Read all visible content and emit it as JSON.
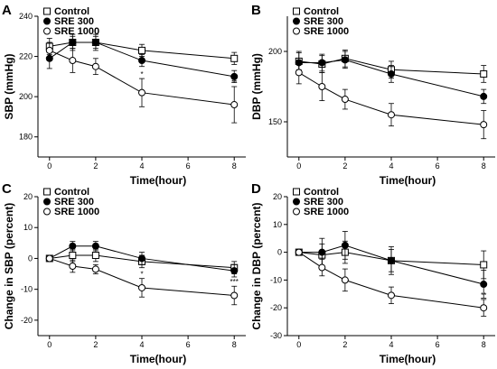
{
  "chart_data": [
    {
      "type": "line",
      "panel_label": "A",
      "xlabel": "Time(hour)",
      "ylabel": "SBP (mmHg)",
      "xlim": [
        -0.5,
        8.5
      ],
      "ylim": [
        170,
        240
      ],
      "xticks": [
        0,
        2,
        4,
        6,
        8
      ],
      "yticks": [
        180,
        200,
        220,
        240
      ],
      "x": [
        0,
        1,
        2,
        4,
        8
      ],
      "legend": "top-left",
      "series": [
        {
          "name": "Control",
          "marker": "square-open",
          "values": [
            225,
            227,
            227,
            223,
            219
          ],
          "errors": [
            4,
            4,
            4,
            3,
            3
          ]
        },
        {
          "name": "SRE 300",
          "marker": "circle-filled",
          "values": [
            219,
            227,
            227,
            218,
            210
          ],
          "errors": [
            5,
            3,
            3,
            3,
            3
          ]
        },
        {
          "name": "SRE 1000",
          "marker": "circle-open",
          "values": [
            223,
            218,
            215,
            202,
            196
          ],
          "errors": [
            4,
            6,
            4,
            7,
            9
          ]
        }
      ],
      "annotations": [
        {
          "x": 4,
          "text": "*"
        },
        {
          "x": 8,
          "text": "**"
        }
      ]
    },
    {
      "type": "line",
      "panel_label": "B",
      "xlabel": "Time(hour)",
      "ylabel": "DBP (mmHg)",
      "xlim": [
        -0.5,
        8.5
      ],
      "ylim": [
        125,
        225
      ],
      "xticks": [
        0,
        2,
        4,
        6,
        8
      ],
      "yticks": [
        150,
        200
      ],
      "x": [
        0,
        1,
        2,
        4,
        8
      ],
      "legend": "top-left",
      "series": [
        {
          "name": "Control",
          "marker": "square-open",
          "values": [
            193,
            191,
            195,
            187,
            184
          ],
          "errors": [
            6,
            6,
            6,
            6,
            6
          ]
        },
        {
          "name": "SRE 300",
          "marker": "circle-filled",
          "values": [
            192,
            192,
            194,
            184,
            168
          ],
          "errors": [
            8,
            6,
            6,
            6,
            5
          ]
        },
        {
          "name": "SRE 1000",
          "marker": "circle-open",
          "values": [
            185,
            175,
            166,
            155,
            148
          ],
          "errors": [
            8,
            10,
            7,
            8,
            10
          ]
        }
      ],
      "annotations": []
    },
    {
      "type": "line",
      "panel_label": "C",
      "xlabel": "Time(hour)",
      "ylabel": "Change in SBP (percent)",
      "xlim": [
        -0.5,
        8.5
      ],
      "ylim": [
        -25,
        20
      ],
      "xticks": [
        0,
        2,
        4,
        6,
        8
      ],
      "yticks": [
        -20,
        -10,
        0,
        10,
        20
      ],
      "x": [
        0,
        1,
        2,
        4,
        8
      ],
      "legend": "top-left",
      "series": [
        {
          "name": "Control",
          "marker": "square-open",
          "values": [
            0,
            1,
            1,
            -1,
            -3
          ],
          "errors": [
            0,
            2,
            2,
            2,
            2
          ]
        },
        {
          "name": "SRE 300",
          "marker": "circle-filled",
          "values": [
            0,
            4,
            4,
            0,
            -4
          ],
          "errors": [
            0,
            1.5,
            1.5,
            2,
            2
          ]
        },
        {
          "name": "SRE 1000",
          "marker": "circle-open",
          "values": [
            0,
            -2.5,
            -3.5,
            -9.5,
            -12
          ],
          "errors": [
            0,
            2,
            1.5,
            3,
            3
          ]
        }
      ],
      "annotations": [
        {
          "x": 4,
          "text": "*"
        },
        {
          "x": 8,
          "text": "***"
        }
      ]
    },
    {
      "type": "line",
      "panel_label": "D",
      "xlabel": "Time(hour)",
      "ylabel": "Change in DBP (percent)",
      "xlim": [
        -0.5,
        8.5
      ],
      "ylim": [
        -30,
        20
      ],
      "xticks": [
        0,
        2,
        4,
        6,
        8
      ],
      "yticks": [
        -30,
        -20,
        -10,
        0,
        10,
        20
      ],
      "x": [
        0,
        1,
        2,
        4,
        8
      ],
      "legend": "top-left",
      "series": [
        {
          "name": "Control",
          "marker": "square-open",
          "values": [
            0,
            -1,
            0,
            -3,
            -4.5
          ],
          "errors": [
            0,
            4,
            4,
            4,
            5
          ]
        },
        {
          "name": "SRE 300",
          "marker": "circle-filled",
          "values": [
            0,
            0,
            2.5,
            -3,
            -11.5
          ],
          "errors": [
            0,
            5,
            5,
            5,
            5
          ]
        },
        {
          "name": "SRE 1000",
          "marker": "circle-open",
          "values": [
            0,
            -5.5,
            -10,
            -15.5,
            -20
          ],
          "errors": [
            0,
            3,
            4,
            3,
            3
          ]
        }
      ],
      "annotations": [
        {
          "x": 8,
          "text": "**"
        }
      ]
    }
  ]
}
